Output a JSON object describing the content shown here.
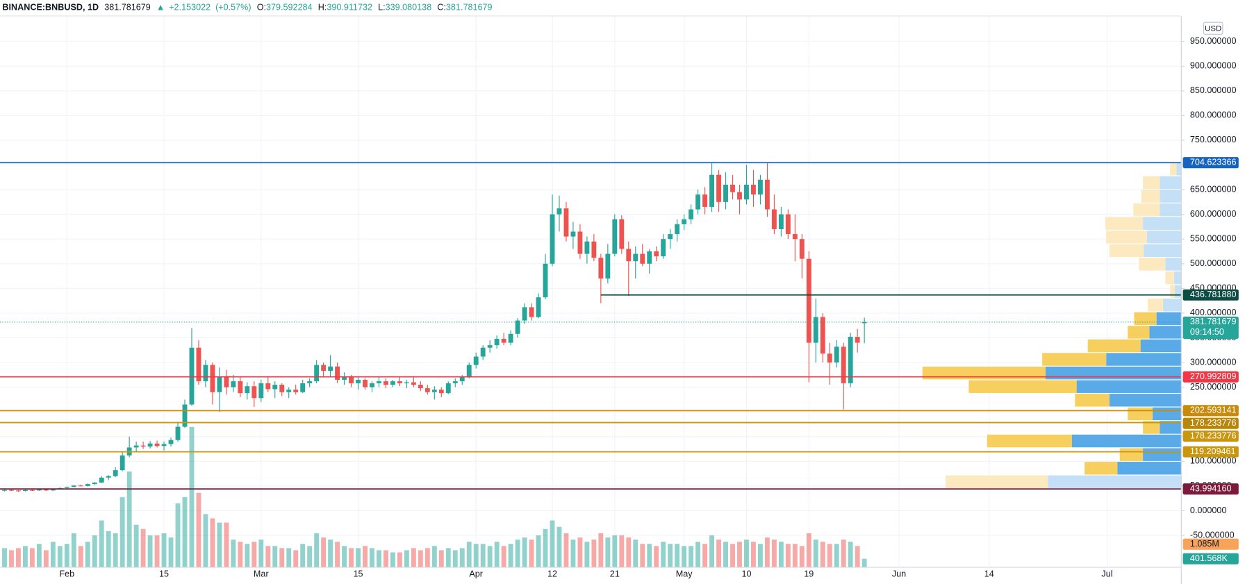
{
  "chart_data": {
    "type": "candlestick",
    "symbol": "BINANCE:BNBUSD, 1D",
    "arrow": "▲",
    "change": {
      "value": 2.153022,
      "label": "+2.153022"
    },
    "change_pct": {
      "value": 0.57,
      "label": "(+0.57%)"
    },
    "ohlc_labels": [
      "O:",
      "H:",
      "L:",
      "C:"
    ],
    "currency": "USD",
    "countdown": "09:14:50",
    "up_color": "#26a69a",
    "down_color": "#ef5350",
    "xlim": [
      -0.65,
      169.7
    ],
    "xticks": [
      {
        "value": 9,
        "label": "Feb"
      },
      {
        "value": 23,
        "label": "15"
      },
      {
        "value": 37,
        "label": "Mar"
      },
      {
        "value": 51,
        "label": "15"
      },
      {
        "value": 68,
        "label": "Apr"
      },
      {
        "value": 79,
        "label": "12"
      },
      {
        "value": 88,
        "label": "21"
      },
      {
        "value": 98,
        "label": "May"
      },
      {
        "value": 107,
        "label": "10"
      },
      {
        "value": 116,
        "label": "19"
      },
      {
        "value": 129,
        "label": "Jun"
      },
      {
        "value": 142,
        "label": "14"
      },
      {
        "value": 159,
        "label": "Jul"
      }
    ],
    "ylim": [
      -114.5,
      1001.6
    ],
    "yticks": [
      {
        "value": 950,
        "label": "950.000000"
      },
      {
        "value": 900,
        "label": "900.000000"
      },
      {
        "value": 850,
        "label": "850.000000"
      },
      {
        "value": 800,
        "label": "800.000000"
      },
      {
        "value": 750,
        "label": "750.000000"
      },
      {
        "value": 700,
        "label": "700.000000"
      },
      {
        "value": 650,
        "label": "650.000000"
      },
      {
        "value": 600,
        "label": "600.000000"
      },
      {
        "value": 550,
        "label": "550.000000"
      },
      {
        "value": 500,
        "label": "500.000000"
      },
      {
        "value": 450,
        "label": "450.000000"
      },
      {
        "value": 400,
        "label": "400.000000"
      },
      {
        "value": 350,
        "label": "350.000000"
      },
      {
        "value": 300,
        "label": "300.000000"
      },
      {
        "value": 250,
        "label": "250.000000"
      },
      {
        "value": 200,
        "label": "200.000000"
      },
      {
        "value": 150,
        "label": "150.000000"
      },
      {
        "value": 100,
        "label": "100.000000"
      },
      {
        "value": 50,
        "label": "50.000000"
      },
      {
        "value": 0,
        "label": "0.000000"
      },
      {
        "value": -50,
        "label": "-50.000000"
      }
    ],
    "grid": true,
    "open": [
      41,
      42,
      41,
      40,
      42,
      41,
      43,
      41,
      44,
      46,
      48,
      51,
      50,
      54,
      57,
      67,
      70,
      82,
      112,
      128,
      132,
      130,
      136,
      131,
      135,
      143,
      170,
      215,
      330,
      262,
      295,
      240,
      272,
      250,
      262,
      238,
      252,
      228,
      258,
      246,
      255,
      240,
      245,
      240,
      258,
      262,
      295,
      283,
      292,
      265,
      272,
      258,
      265,
      250,
      258,
      262,
      255,
      262,
      258,
      260,
      255,
      248,
      240,
      245,
      238,
      258,
      262,
      270,
      295,
      312,
      330,
      335,
      348,
      340,
      358,
      385,
      412,
      392,
      432,
      500,
      600,
      612,
      555,
      565,
      520,
      545,
      512,
      470,
      520,
      590,
      530,
      505,
      520,
      500,
      525,
      515,
      550,
      560,
      580,
      590,
      610,
      640,
      615,
      680,
      625,
      660,
      645,
      630,
      660,
      640,
      670,
      610,
      570,
      600,
      560,
      550,
      510,
      340,
      392,
      318,
      300,
      332,
      258,
      352,
      379.592284
    ],
    "high": [
      43,
      44,
      42,
      43,
      43,
      44,
      44,
      45,
      47,
      49,
      52,
      53,
      55,
      58,
      70,
      72,
      88,
      120,
      150,
      140,
      140,
      141,
      142,
      140,
      148,
      180,
      225,
      370,
      345,
      305,
      300,
      290,
      285,
      275,
      270,
      260,
      262,
      265,
      270,
      262,
      258,
      250,
      255,
      265,
      268,
      305,
      300,
      315,
      300,
      280,
      275,
      270,
      268,
      262,
      272,
      268,
      265,
      270,
      265,
      272,
      262,
      255,
      252,
      250,
      262,
      268,
      275,
      300,
      320,
      335,
      345,
      355,
      360,
      365,
      390,
      420,
      420,
      440,
      520,
      640,
      638,
      625,
      585,
      580,
      555,
      560,
      520,
      540,
      600,
      598,
      545,
      535,
      540,
      530,
      535,
      560,
      570,
      590,
      600,
      620,
      650,
      655,
      705,
      690,
      685,
      680,
      660,
      700,
      690,
      680,
      705,
      640,
      615,
      610,
      600,
      560,
      525,
      430,
      400,
      340,
      345,
      340,
      360,
      368,
      390.911732
    ],
    "low": [
      39,
      40,
      38,
      39,
      40,
      40,
      40,
      40,
      43,
      44,
      47,
      49,
      49,
      52,
      56,
      62,
      68,
      80,
      108,
      118,
      125,
      126,
      128,
      122,
      130,
      140,
      168,
      212,
      255,
      250,
      215,
      200,
      235,
      240,
      230,
      225,
      210,
      220,
      240,
      228,
      232,
      228,
      235,
      238,
      250,
      258,
      270,
      270,
      258,
      255,
      250,
      245,
      245,
      240,
      250,
      248,
      250,
      252,
      248,
      250,
      242,
      235,
      225,
      230,
      236,
      250,
      255,
      268,
      288,
      305,
      320,
      328,
      335,
      335,
      350,
      378,
      385,
      390,
      428,
      495,
      565,
      545,
      530,
      510,
      500,
      505,
      420,
      460,
      515,
      520,
      435,
      470,
      495,
      480,
      505,
      510,
      530,
      545,
      568,
      580,
      600,
      600,
      605,
      605,
      610,
      630,
      600,
      620,
      615,
      620,
      595,
      560,
      555,
      550,
      505,
      470,
      260,
      300,
      300,
      255,
      290,
      205,
      250,
      320,
      339.080138
    ],
    "close": [
      42,
      41,
      40,
      42,
      41,
      43,
      41,
      44,
      46,
      48,
      51,
      50,
      54,
      57,
      67,
      70,
      82,
      112,
      128,
      132,
      130,
      136,
      131,
      135,
      143,
      170,
      215,
      330,
      262,
      295,
      240,
      272,
      250,
      262,
      238,
      252,
      228,
      258,
      246,
      255,
      240,
      245,
      240,
      258,
      262,
      295,
      283,
      292,
      265,
      272,
      258,
      265,
      250,
      258,
      262,
      255,
      262,
      258,
      260,
      255,
      248,
      240,
      245,
      238,
      258,
      262,
      270,
      295,
      312,
      330,
      335,
      348,
      340,
      358,
      385,
      412,
      392,
      432,
      500,
      600,
      612,
      555,
      565,
      520,
      545,
      512,
      470,
      520,
      590,
      530,
      505,
      520,
      500,
      525,
      515,
      550,
      560,
      580,
      590,
      610,
      640,
      615,
      680,
      625,
      660,
      645,
      630,
      660,
      640,
      670,
      610,
      570,
      600,
      560,
      550,
      510,
      340,
      392,
      318,
      300,
      332,
      258,
      352,
      340,
      381.781679
    ],
    "volume": {
      "values": [
        900000,
        800000,
        900000,
        1000000,
        900000,
        1100000,
        800000,
        1200000,
        1000000,
        1100000,
        1600000,
        1000000,
        1200000,
        1500000,
        2200000,
        1700000,
        1600000,
        3300000,
        4500000,
        2000000,
        1800000,
        1500000,
        1500000,
        1600000,
        1400000,
        3000000,
        3300000,
        6600000,
        3500000,
        2500000,
        2300000,
        2100000,
        2100000,
        1300000,
        1200000,
        1100000,
        1200000,
        1300000,
        1000000,
        1000000,
        900000,
        900000,
        800000,
        1100000,
        1000000,
        1600000,
        1400000,
        1300000,
        1200000,
        1000000,
        900000,
        900000,
        1000000,
        900000,
        800000,
        800000,
        700000,
        700000,
        800000,
        900000,
        800000,
        900000,
        1000000,
        800000,
        900000,
        800000,
        900000,
        1200000,
        1100000,
        1100000,
        1000000,
        1200000,
        1000000,
        1100000,
        1300000,
        1400000,
        1300000,
        1500000,
        1800000,
        2200000,
        1900000,
        1600000,
        1300000,
        1400000,
        1200000,
        1300000,
        1600000,
        1400000,
        1500000,
        1500000,
        1400000,
        1300000,
        1100000,
        1100000,
        1000000,
        1200000,
        1100000,
        1100000,
        1000000,
        1000000,
        1200000,
        1100000,
        1500000,
        1300000,
        1200000,
        1100000,
        1200000,
        1300000,
        1200000,
        1100000,
        1400000,
        1300000,
        1200000,
        1100000,
        1100000,
        1000000,
        1600000,
        1300000,
        1200000,
        1100000,
        1100000,
        1300000,
        1200000,
        1000000,
        401568
      ],
      "last_label": "401.568K",
      "ylim": [
        0,
        25920000
      ],
      "ma": {
        "value": 1085000,
        "label": "1.085M"
      },
      "ma_color": "#f7a35c"
    },
    "levels": [
      {
        "price": 704.623366,
        "color": "#1565c0"
      },
      {
        "price": {
          "value": 436.78188,
          "label": "436.781880"
        },
        "color": "#0b4d45",
        "start": 86
      },
      {
        "price": 270.992809,
        "color": "#f23645"
      },
      {
        "price": 202.593141,
        "color": "#c88a0a"
      },
      {
        "price": 178.233776,
        "color": "#b8860b"
      },
      {
        "price": 178.233776,
        "color": "#c8960f"
      },
      {
        "price": 119.209461,
        "color": "#c8960f"
      },
      {
        "price": {
          "value": 43.99416,
          "label": "43.994160"
        },
        "color": "#7b1a3a"
      }
    ],
    "profile": {
      "edges": [
        44,
        71.5,
        99,
        126.6,
        154.1,
        181.6,
        209.2,
        236.7,
        264.2,
        291.8,
        319.3,
        346.8,
        374.3,
        401.9,
        429.4,
        456.9,
        484.5,
        512,
        539.5,
        567.1,
        594.6,
        622.1,
        649.7,
        677.2,
        704.7
      ],
      "up": [
        1670000,
        800000,
        480000,
        1370000,
        270000,
        360000,
        900000,
        1310000,
        1700000,
        940000,
        510000,
        400000,
        310000,
        230000,
        80000,
        90000,
        200000,
        470000,
        430000,
        480000,
        270000,
        270000,
        270000,
        60000
      ],
      "down": [
        1280000,
        410000,
        290000,
        1060000,
        210000,
        310000,
        430000,
        1350000,
        1540000,
        800000,
        660000,
        270000,
        280000,
        190000,
        60000,
        110000,
        330000,
        430000,
        510000,
        470000,
        330000,
        230000,
        210000,
        80000
      ],
      "value_area": [
        71.5,
        401.9
      ],
      "colors": {
        "up": "#5aaae8",
        "down": "#f7cf5f",
        "up_light": "#c3e0f7",
        "down_light": "#fce9bf"
      }
    }
  }
}
